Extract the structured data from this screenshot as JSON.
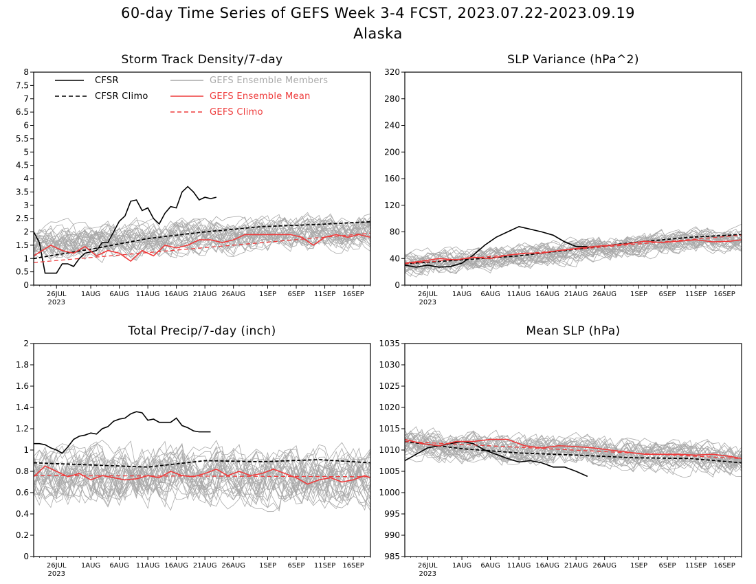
{
  "figure": {
    "title_line1": "60-day Time Series of GEFS Week 3-4 FCST, 2023.07.22-2023.09.19",
    "title_line2": "Alaska"
  },
  "colors": {
    "cfsr": "#000000",
    "members": "#a9a9a9",
    "ens_mean": "#ee3b3b",
    "gefs_climo": "#ee3b3b"
  },
  "legend": [
    {
      "label": "CFSR",
      "style": "solid",
      "color": "#000000"
    },
    {
      "label": "CFSR Climo",
      "style": "dashed",
      "color": "#000000"
    },
    {
      "label": "GEFS Ensemble Members",
      "style": "solid",
      "color": "#a9a9a9"
    },
    {
      "label": "GEFS Ensemble Mean",
      "style": "solid",
      "color": "#ee3b3b"
    },
    {
      "label": "GEFS Climo",
      "style": "dashed",
      "color": "#ee3b3b"
    }
  ],
  "chart_data": [
    {
      "type": "line",
      "title": "Storm Track Density/7-day",
      "ylim": [
        0,
        8
      ],
      "yticks": [
        "0",
        "0.5",
        "1",
        "1.5",
        "2",
        "2.5",
        "3",
        "3.5",
        "4",
        "4.5",
        "5",
        "5.5",
        "6",
        "6.5",
        "7",
        "7.5",
        "8"
      ],
      "xlim": [
        0,
        59
      ],
      "xticks": [
        {
          "day": 4,
          "label": "26JUL",
          "sub": "2023"
        },
        {
          "day": 10,
          "label": "1AUG"
        },
        {
          "day": 15,
          "label": "6AUG"
        },
        {
          "day": 20,
          "label": "11AUG"
        },
        {
          "day": 25,
          "label": "16AUG"
        },
        {
          "day": 30,
          "label": "21AUG"
        },
        {
          "day": 35,
          "label": "26AUG"
        },
        {
          "day": 41,
          "label": "1SEP"
        },
        {
          "day": 46,
          "label": "6SEP"
        },
        {
          "day": 51,
          "label": "11SEP"
        },
        {
          "day": 56,
          "label": "16SEP"
        }
      ],
      "members": {
        "count": 30,
        "base": [
          1.6,
          1.65,
          1.7,
          1.75,
          1.8,
          1.85,
          1.9,
          1.95,
          2.0
        ],
        "spread": 0.75
      },
      "series": [
        {
          "name": "CFSR",
          "role": "cfsr",
          "x": [
            0,
            1,
            2,
            3,
            4,
            5,
            6,
            7,
            8,
            9,
            10,
            11,
            12,
            13,
            14,
            15,
            16,
            17,
            18,
            19,
            20,
            21,
            22,
            23,
            24,
            25,
            26,
            27,
            28,
            29,
            30,
            31,
            32
          ],
          "y": [
            2.0,
            1.6,
            0.45,
            0.45,
            0.45,
            0.8,
            0.8,
            0.7,
            1.0,
            1.2,
            1.25,
            1.3,
            1.6,
            1.6,
            2.0,
            2.4,
            2.6,
            3.15,
            3.2,
            2.8,
            2.9,
            2.5,
            2.3,
            2.7,
            2.95,
            2.9,
            3.5,
            3.7,
            3.5,
            3.2,
            3.3,
            3.25,
            3.3
          ]
        },
        {
          "name": "CFSR Climo",
          "role": "cfsr_climo",
          "x": [
            0,
            10,
            20,
            30,
            40,
            50,
            59
          ],
          "y": [
            1.0,
            1.35,
            1.75,
            2.0,
            2.2,
            2.28,
            2.38
          ]
        },
        {
          "name": "GEFS Ensemble Mean",
          "role": "ens_mean",
          "x": [
            0,
            3,
            5,
            7,
            9,
            11,
            13,
            15,
            17,
            19,
            21,
            23,
            25,
            27,
            29,
            31,
            33,
            35,
            37,
            39,
            41,
            43,
            45,
            47,
            49,
            51,
            53,
            55,
            57,
            59
          ],
          "y": [
            1.1,
            1.5,
            1.3,
            1.2,
            1.45,
            1.1,
            1.3,
            1.2,
            0.9,
            1.3,
            1.1,
            1.5,
            1.4,
            1.5,
            1.7,
            1.7,
            1.6,
            1.7,
            1.9,
            1.9,
            1.9,
            1.9,
            1.9,
            1.8,
            1.5,
            1.8,
            1.9,
            1.8,
            1.9,
            1.8
          ]
        },
        {
          "name": "GEFS Climo",
          "role": "gefs_climo",
          "x": [
            0,
            59
          ],
          "y": [
            0.85,
            1.95
          ]
        }
      ]
    },
    {
      "type": "line",
      "title": "SLP Variance (hPa^2)",
      "ylim": [
        0,
        320
      ],
      "yticks": [
        "0",
        "40",
        "80",
        "120",
        "160",
        "200",
        "240",
        "280",
        "320"
      ],
      "xlim": [
        0,
        59
      ],
      "xticks": [
        {
          "day": 4,
          "label": "26JUL",
          "sub": "2023"
        },
        {
          "day": 10,
          "label": "1AUG"
        },
        {
          "day": 15,
          "label": "6AUG"
        },
        {
          "day": 20,
          "label": "11AUG"
        },
        {
          "day": 25,
          "label": "16AUG"
        },
        {
          "day": 30,
          "label": "21AUG"
        },
        {
          "day": 35,
          "label": "26AUG"
        },
        {
          "day": 41,
          "label": "1SEP"
        },
        {
          "day": 46,
          "label": "6SEP"
        },
        {
          "day": 51,
          "label": "11SEP"
        },
        {
          "day": 56,
          "label": "16SEP"
        }
      ],
      "members": {
        "count": 30,
        "base": [
          32,
          36,
          40,
          44,
          50,
          56,
          62,
          66,
          68
        ],
        "spread": 20
      },
      "series": [
        {
          "name": "CFSR",
          "role": "cfsr",
          "x": [
            0,
            2,
            4,
            6,
            8,
            10,
            12,
            14,
            16,
            18,
            20,
            22,
            24,
            26,
            28,
            30,
            32
          ],
          "y": [
            30,
            27,
            30,
            27,
            28,
            33,
            45,
            60,
            72,
            80,
            88,
            84,
            80,
            75,
            65,
            58,
            58
          ]
        },
        {
          "name": "CFSR Climo",
          "role": "cfsr_climo",
          "x": [
            0,
            10,
            20,
            30,
            40,
            50,
            59
          ],
          "y": [
            32,
            38,
            44,
            54,
            64,
            72,
            76
          ]
        },
        {
          "name": "GEFS Ensemble Mean",
          "role": "ens_mean",
          "x": [
            0,
            3,
            6,
            9,
            12,
            15,
            18,
            21,
            24,
            27,
            30,
            33,
            36,
            39,
            42,
            45,
            48,
            51,
            54,
            57,
            59
          ],
          "y": [
            33,
            36,
            40,
            38,
            42,
            40,
            45,
            48,
            48,
            52,
            55,
            58,
            60,
            62,
            66,
            64,
            66,
            68,
            65,
            66,
            68
          ]
        },
        {
          "name": "GEFS Climo",
          "role": "gefs_climo",
          "x": [
            0,
            59
          ],
          "y": [
            32,
            75
          ]
        }
      ]
    },
    {
      "type": "line",
      "title": "Total Precip/7-day (inch)",
      "ylim": [
        0,
        2
      ],
      "yticks": [
        "0",
        "0.2",
        "0.4",
        "0.6",
        "0.8",
        "1",
        "1.2",
        "1.4",
        "1.6",
        "1.8",
        "2"
      ],
      "xlim": [
        0,
        59
      ],
      "xticks": [
        {
          "day": 4,
          "label": "26JUL",
          "sub": "2023"
        },
        {
          "day": 10,
          "label": "1AUG"
        },
        {
          "day": 15,
          "label": "6AUG"
        },
        {
          "day": 20,
          "label": "11AUG"
        },
        {
          "day": 25,
          "label": "16AUG"
        },
        {
          "day": 30,
          "label": "21AUG"
        },
        {
          "day": 35,
          "label": "26AUG"
        },
        {
          "day": 41,
          "label": "1SEP"
        },
        {
          "day": 46,
          "label": "6SEP"
        },
        {
          "day": 51,
          "label": "11SEP"
        },
        {
          "day": 56,
          "label": "16SEP"
        }
      ],
      "members": {
        "count": 30,
        "base": [
          0.76,
          0.76,
          0.75,
          0.75,
          0.75,
          0.75,
          0.75,
          0.75,
          0.75
        ],
        "spread": 0.3
      },
      "series": [
        {
          "name": "CFSR",
          "role": "cfsr",
          "x": [
            0,
            1,
            2,
            3,
            4,
            5,
            6,
            7,
            8,
            9,
            10,
            11,
            12,
            13,
            14,
            15,
            16,
            17,
            18,
            19,
            20,
            21,
            22,
            23,
            24,
            25,
            26,
            27,
            28,
            29,
            30,
            31
          ],
          "y": [
            1.06,
            1.06,
            1.05,
            1.02,
            1.0,
            0.97,
            1.03,
            1.1,
            1.13,
            1.14,
            1.16,
            1.15,
            1.2,
            1.22,
            1.27,
            1.29,
            1.3,
            1.34,
            1.36,
            1.35,
            1.28,
            1.29,
            1.26,
            1.26,
            1.26,
            1.3,
            1.23,
            1.21,
            1.18,
            1.17,
            1.17,
            1.17
          ]
        },
        {
          "name": "CFSR Climo",
          "role": "cfsr_climo",
          "x": [
            0,
            10,
            20,
            30,
            40,
            50,
            59
          ],
          "y": [
            0.88,
            0.86,
            0.84,
            0.9,
            0.89,
            0.91,
            0.88
          ]
        },
        {
          "name": "GEFS Ensemble Mean",
          "role": "ens_mean",
          "x": [
            0,
            2,
            4,
            6,
            8,
            10,
            12,
            14,
            16,
            18,
            20,
            22,
            24,
            26,
            28,
            30,
            32,
            34,
            36,
            38,
            40,
            42,
            44,
            46,
            48,
            50,
            52,
            54,
            56,
            58,
            59
          ],
          "y": [
            0.75,
            0.85,
            0.8,
            0.75,
            0.78,
            0.72,
            0.76,
            0.74,
            0.72,
            0.73,
            0.76,
            0.74,
            0.8,
            0.76,
            0.75,
            0.78,
            0.82,
            0.76,
            0.8,
            0.76,
            0.78,
            0.82,
            0.78,
            0.74,
            0.68,
            0.72,
            0.74,
            0.7,
            0.72,
            0.76,
            0.74
          ]
        },
        {
          "name": "GEFS Climo",
          "role": "gefs_climo",
          "x": [
            0,
            59
          ],
          "y": [
            0.76,
            0.75
          ]
        }
      ]
    },
    {
      "type": "line",
      "title": "Mean SLP (hPa)",
      "ylim": [
        985,
        1035
      ],
      "yticks": [
        "985",
        "990",
        "995",
        "1000",
        "1005",
        "1010",
        "1015",
        "1020",
        "1025",
        "1030",
        "1035"
      ],
      "xlim": [
        0,
        59
      ],
      "xticks": [
        {
          "day": 4,
          "label": "26JUL",
          "sub": "2023"
        },
        {
          "day": 10,
          "label": "1AUG"
        },
        {
          "day": 15,
          "label": "6AUG"
        },
        {
          "day": 20,
          "label": "11AUG"
        },
        {
          "day": 25,
          "label": "16AUG"
        },
        {
          "day": 30,
          "label": "21AUG"
        },
        {
          "day": 35,
          "label": "26AUG"
        },
        {
          "day": 41,
          "label": "1SEP"
        },
        {
          "day": 46,
          "label": "6SEP"
        },
        {
          "day": 51,
          "label": "11SEP"
        },
        {
          "day": 56,
          "label": "16SEP"
        }
      ],
      "members": {
        "count": 30,
        "base": [
          1011.5,
          1011.0,
          1010.5,
          1010.0,
          1009.5,
          1009.0,
          1008.5,
          1008.2,
          1008.0
        ],
        "spread": 4
      },
      "series": [
        {
          "name": "CFSR",
          "role": "cfsr",
          "x": [
            0,
            2,
            4,
            6,
            8,
            10,
            12,
            14,
            16,
            18,
            20,
            22,
            24,
            26,
            28,
            30,
            32
          ],
          "y": [
            1007.5,
            1009,
            1010.5,
            1011,
            1011.5,
            1012,
            1011.5,
            1010,
            1009,
            1008,
            1007.2,
            1007.5,
            1007,
            1006,
            1006,
            1005,
            1003.8
          ]
        },
        {
          "name": "CFSR Climo",
          "role": "cfsr_climo",
          "x": [
            0,
            10,
            20,
            30,
            40,
            50,
            59
          ],
          "y": [
            1012,
            1010.3,
            1009.3,
            1008.8,
            1008.2,
            1008,
            1007
          ]
        },
        {
          "name": "GEFS Ensemble Mean",
          "role": "ens_mean",
          "x": [
            0,
            3,
            6,
            9,
            12,
            15,
            18,
            21,
            24,
            27,
            30,
            33,
            36,
            39,
            42,
            45,
            48,
            51,
            54,
            57,
            59
          ],
          "y": [
            1012.5,
            1011.5,
            1011,
            1012,
            1012,
            1012.5,
            1012.5,
            1011,
            1010.5,
            1011,
            1010.8,
            1010.5,
            1010,
            1009.5,
            1009,
            1009,
            1009,
            1008.8,
            1009,
            1008.5,
            1008
          ]
        },
        {
          "name": "GEFS Climo",
          "role": "gefs_climo",
          "x": [
            0,
            59
          ],
          "y": [
            1012,
            1008
          ]
        }
      ]
    }
  ]
}
